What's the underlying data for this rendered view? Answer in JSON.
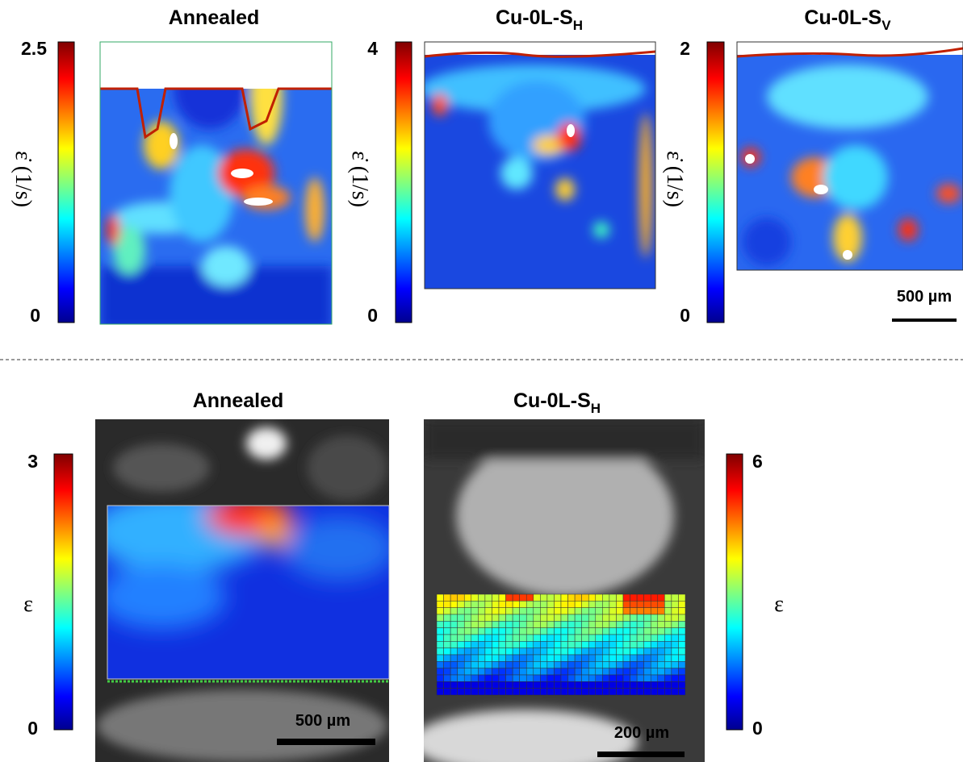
{
  "top_row": {
    "panels": [
      {
        "title": "Annealed",
        "colorbar_max": "2.5",
        "colorbar_min": "0",
        "axis_label": "ε̇ (1/s)"
      },
      {
        "title": "Cu-0L-S",
        "subscript": "H",
        "colorbar_max": "4",
        "colorbar_min": "0",
        "axis_label": "ε̇ (1/s)"
      },
      {
        "title": "Cu-0L-S",
        "subscript": "V",
        "colorbar_max": "2",
        "colorbar_min": "0",
        "axis_label": "ε̇ (1/s)",
        "scale_bar": "500 µm"
      }
    ]
  },
  "bottom_row": {
    "panels": [
      {
        "title": "Annealed",
        "colorbar_max": "3",
        "colorbar_min": "0",
        "axis_label": "ε",
        "scale_bar": "500 µm"
      },
      {
        "title": "Cu-0L-S",
        "subscript": "H",
        "colorbar_max": "6",
        "colorbar_min": "0",
        "axis_label": "ε",
        "scale_bar": "200 µm"
      }
    ]
  }
}
